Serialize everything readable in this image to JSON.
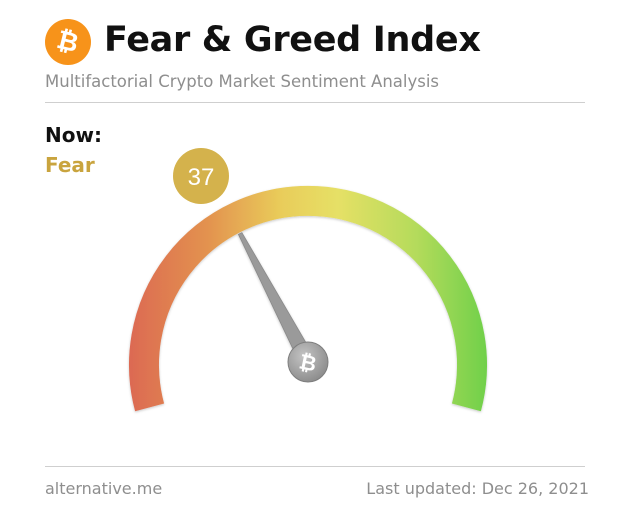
{
  "header": {
    "logo_glyph": "₿",
    "title": "Fear & Greed Index",
    "subtitle": "Multifactorial Crypto Market Sentiment Analysis"
  },
  "now": {
    "label": "Now:",
    "classification": "Fear",
    "value": "37",
    "value_number": 37,
    "scale_min": 0,
    "scale_max": 100
  },
  "gauge": {
    "hub_glyph": "₿",
    "gradient_colors": [
      "#dc6a52",
      "#e3934f",
      "#e9cc5a",
      "#e6e066",
      "#b4db5b",
      "#6fd04a"
    ],
    "badge_color": "#d4b24c",
    "needle_color": "#9a9a9a"
  },
  "footer": {
    "source": "alternative.me",
    "updated": "Last updated: Dec 26, 2021"
  }
}
